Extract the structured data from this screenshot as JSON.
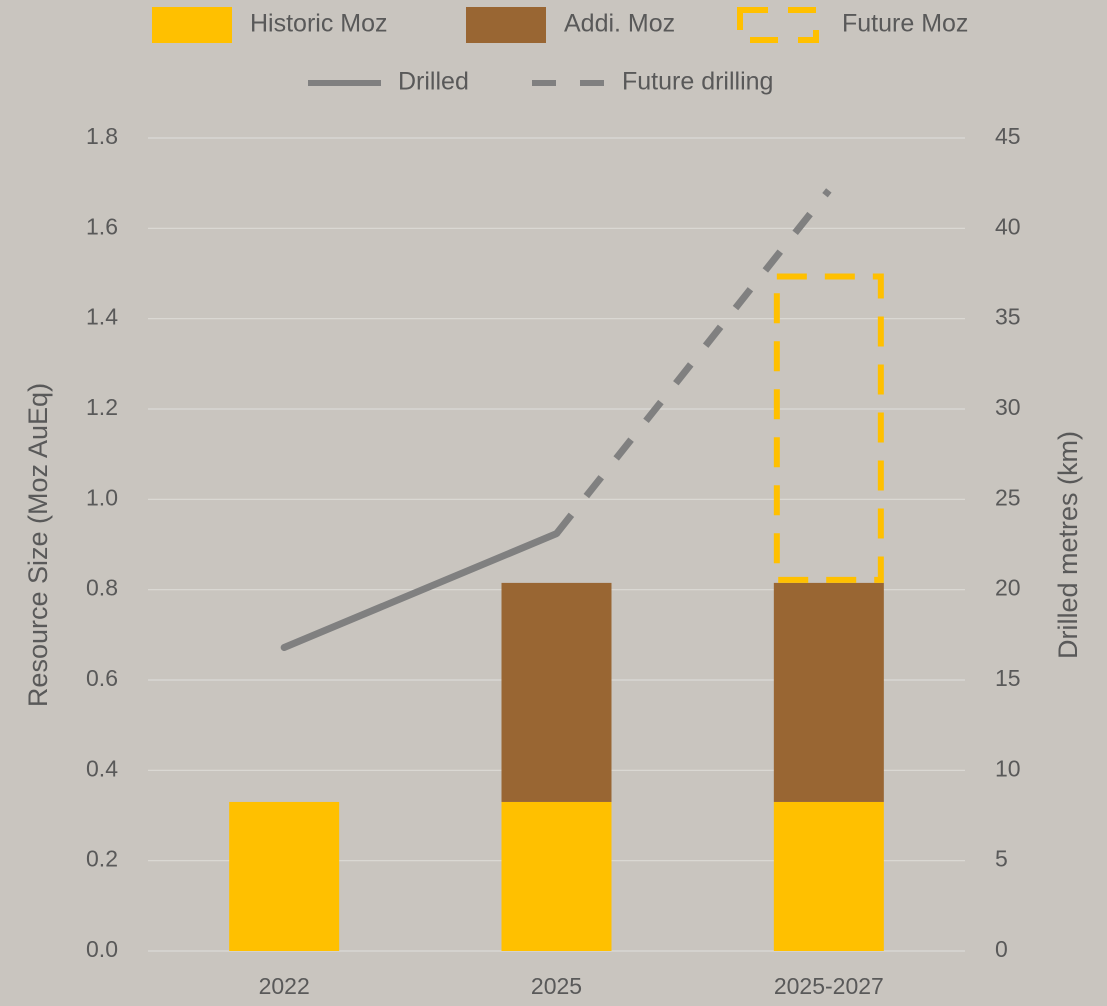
{
  "chart_data": {
    "type": "bar",
    "categories": [
      "2022",
      "2025",
      "2025-2027"
    ],
    "series": [
      {
        "name": "Historic Moz",
        "type": "bar",
        "style": "solid",
        "color": "#ffc000",
        "values": [
          0.33,
          0.33,
          0.33
        ]
      },
      {
        "name": "Addi. Moz",
        "type": "bar",
        "style": "solid",
        "color": "#996633",
        "values": [
          null,
          0.485,
          0.485
        ]
      },
      {
        "name": "Future Moz",
        "type": "bar",
        "style": "dashed",
        "color": "#ffc000",
        "values": [
          null,
          null,
          0.685
        ]
      },
      {
        "name": "Drilled",
        "type": "line",
        "style": "solid",
        "axis": "y2",
        "color": "#808080",
        "values": [
          16.8,
          23.1,
          null
        ]
      },
      {
        "name": "Future drilling",
        "type": "line",
        "style": "dashed",
        "axis": "y2",
        "color": "#808080",
        "values": [
          null,
          23.1,
          42.1
        ]
      }
    ],
    "ylabel": "Resource Size (Moz AuEq)",
    "y2label": "Drilled metres (km)",
    "ylim": [
      0,
      1.8
    ],
    "yticks": [
      {
        "value": 0,
        "label": "0.0"
      },
      0.2,
      0.4,
      0.6,
      0.8,
      {
        "value": 1,
        "label": "1.0"
      },
      1.2,
      1.4,
      1.6,
      1.8
    ],
    "y2lim": [
      0,
      45
    ],
    "y2ticks": [
      0,
      5,
      10,
      15,
      20,
      25,
      30,
      35,
      40,
      45
    ],
    "grid": true,
    "legend": "top"
  }
}
